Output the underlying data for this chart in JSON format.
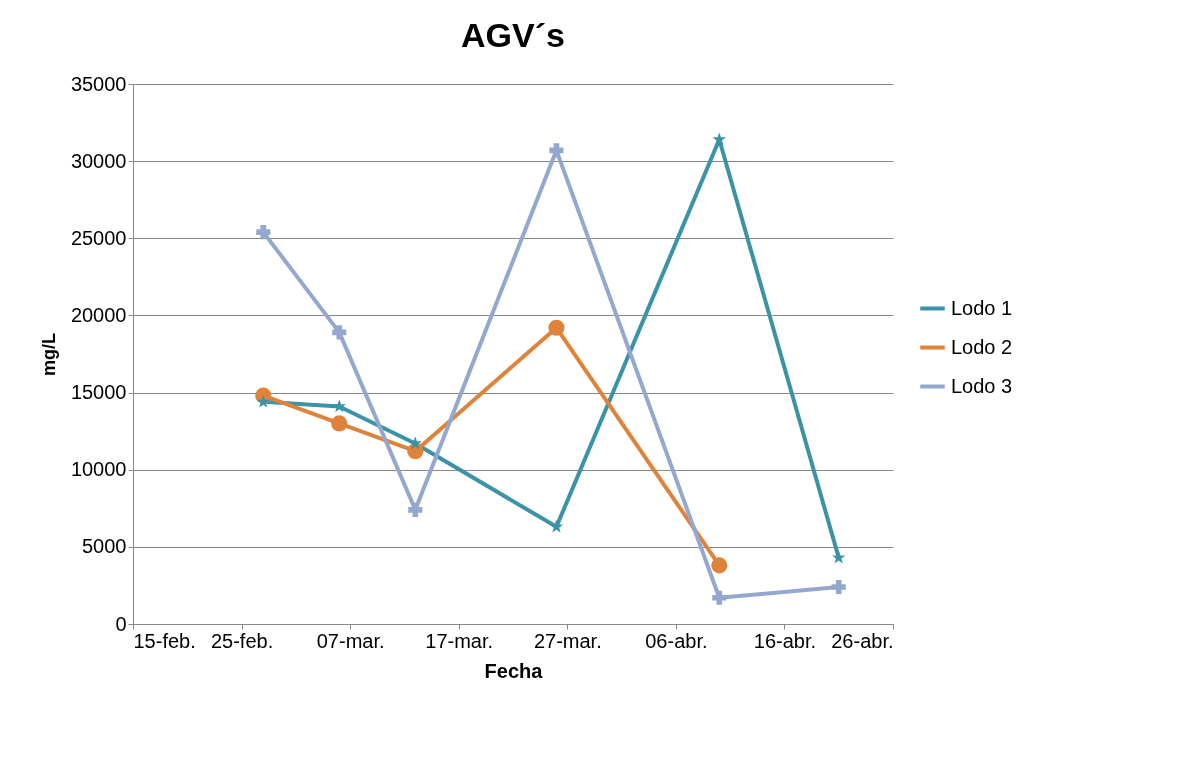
{
  "chart_data": {
    "type": "line",
    "title": "AGV´s",
    "xlabel": "Fecha",
    "ylabel": "mg/L",
    "xlim": [
      "--02-15",
      "--04-26"
    ],
    "xticks": [
      {
        "value": "--02-15",
        "label": "15-feb."
      },
      {
        "value": "--02-25",
        "label": "25-feb."
      },
      {
        "value": "--03-07",
        "label": "07-mar."
      },
      {
        "value": "--03-17",
        "label": "17-mar."
      },
      {
        "value": "--03-27",
        "label": "27-mar."
      },
      {
        "value": "--04-06",
        "label": "06-abr."
      },
      {
        "value": "--04-16",
        "label": "16-abr."
      },
      {
        "value": "--04-26",
        "label": "26-abr."
      }
    ],
    "ylim": [
      0,
      35000
    ],
    "yticks": [
      0,
      5000,
      10000,
      15000,
      20000,
      25000,
      30000,
      35000
    ],
    "grid": "y",
    "legend": "right",
    "line_style": "solid",
    "series": [
      {
        "name": "Lodo 1",
        "color": "#3a93a6",
        "marker": "star",
        "x": [
          "--02-27",
          "--03-06",
          "--03-13",
          "--03-26",
          "--04-10",
          "--04-21"
        ],
        "values": [
          14400,
          14100,
          11700,
          6300,
          31400,
          4300
        ]
      },
      {
        "name": "Lodo 2",
        "color": "#e0833a",
        "marker": "circle",
        "x": [
          "--02-27",
          "--03-06",
          "--03-13",
          "--03-26",
          "--04-10"
        ],
        "values": [
          14800,
          13000,
          11200,
          19200,
          3800
        ]
      },
      {
        "name": "Lodo 3",
        "color": "#94a8cf",
        "marker": "cross",
        "x": [
          "--02-27",
          "--03-06",
          "--03-13",
          "--03-26",
          "--04-10",
          "--04-21"
        ],
        "values": [
          25400,
          18900,
          7400,
          30700,
          1700,
          2400
        ]
      }
    ]
  }
}
